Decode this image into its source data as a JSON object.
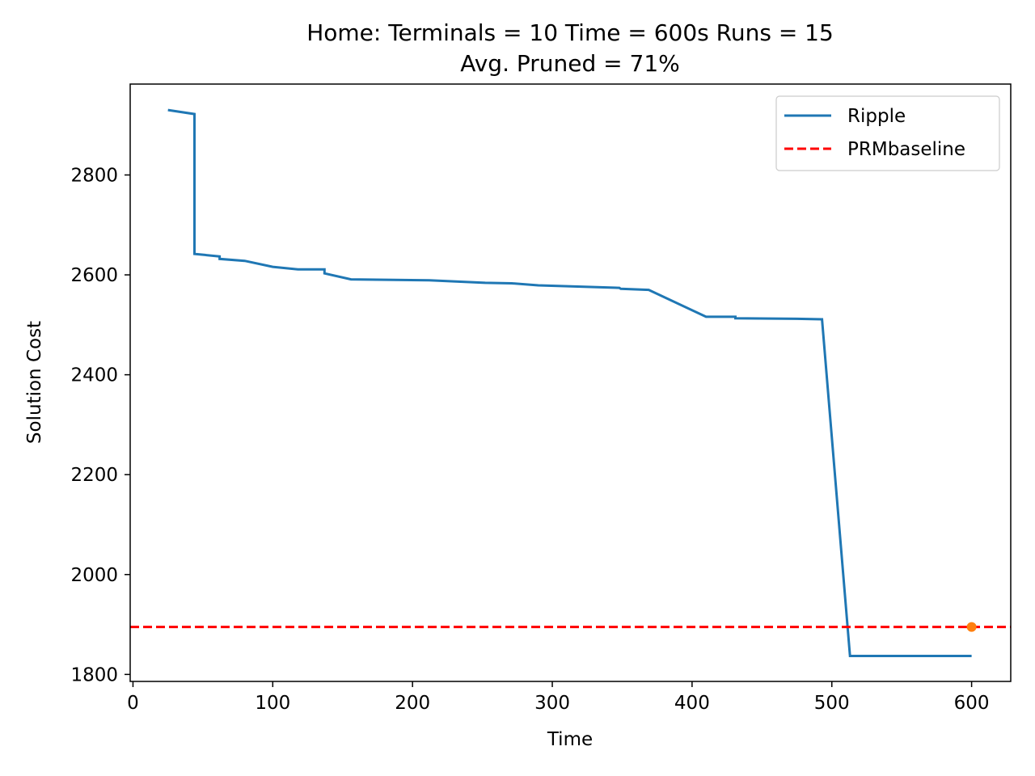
{
  "chart_data": {
    "type": "line",
    "title_line1": "Home:  Terminals = 10  Time = 600s  Runs = 15",
    "title_line2": "Avg. Pruned = 71%",
    "xlabel": "Time",
    "ylabel": "Solution Cost",
    "xlim": [
      -2,
      628
    ],
    "ylim": [
      1786,
      2982
    ],
    "xticks": [
      0,
      100,
      200,
      300,
      400,
      500,
      600
    ],
    "yticks": [
      1800,
      2000,
      2200,
      2400,
      2600,
      2800
    ],
    "grid": false,
    "legend_position": "upper right",
    "series": [
      {
        "name": "Ripple",
        "style": "solid",
        "color": "#1f77b4",
        "x": [
          25,
          44,
          44,
          62,
          62,
          80,
          100,
          118,
          137,
          137,
          156,
          212,
          252,
          271,
          290,
          348,
          349,
          369,
          410,
          431,
          431,
          475,
          493,
          513,
          600
        ],
        "y": [
          2930,
          2922,
          2642,
          2637,
          2632,
          2628,
          2616,
          2611,
          2611,
          2603,
          2591,
          2589,
          2584,
          2583,
          2579,
          2574,
          2572,
          2570,
          2516,
          2516,
          2513,
          2512,
          2511,
          1837,
          1837
        ]
      },
      {
        "name": "PRMbaseline",
        "style": "dashed",
        "color": "#ff0000",
        "y": 1895
      }
    ],
    "markers": [
      {
        "x": 600,
        "y": 1895,
        "color": "#ff7f0e"
      }
    ]
  }
}
